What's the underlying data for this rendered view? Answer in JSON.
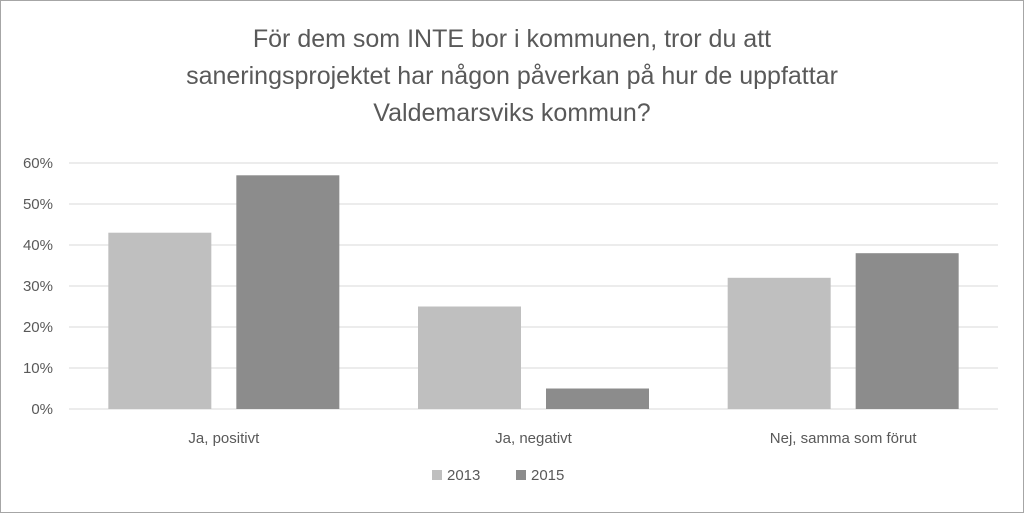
{
  "chart_data": {
    "type": "bar",
    "title_lines": [
      "För dem som INTE bor i kommunen, tror du att",
      "saneringsprojektet har någon påverkan på hur de uppfattar",
      "Valdemarsviks kommun?"
    ],
    "categories": [
      "Ja, positivt",
      "Ja, negativt",
      "Nej, samma som förut"
    ],
    "series": [
      {
        "name": "2013",
        "values": [
          0.43,
          0.25,
          0.32
        ],
        "color": "#bfbfbf"
      },
      {
        "name": "2015",
        "values": [
          0.57,
          0.05,
          0.38
        ],
        "color": "#8c8c8c"
      }
    ],
    "y_ticks": [
      "0%",
      "10%",
      "20%",
      "30%",
      "40%",
      "50%",
      "60%"
    ],
    "ylim": [
      0,
      0.6
    ],
    "grid": true,
    "legend_position": "bottom",
    "colors": {
      "grid": "#d9d9d9",
      "text": "#595959",
      "border": "#a6a6a6"
    }
  }
}
